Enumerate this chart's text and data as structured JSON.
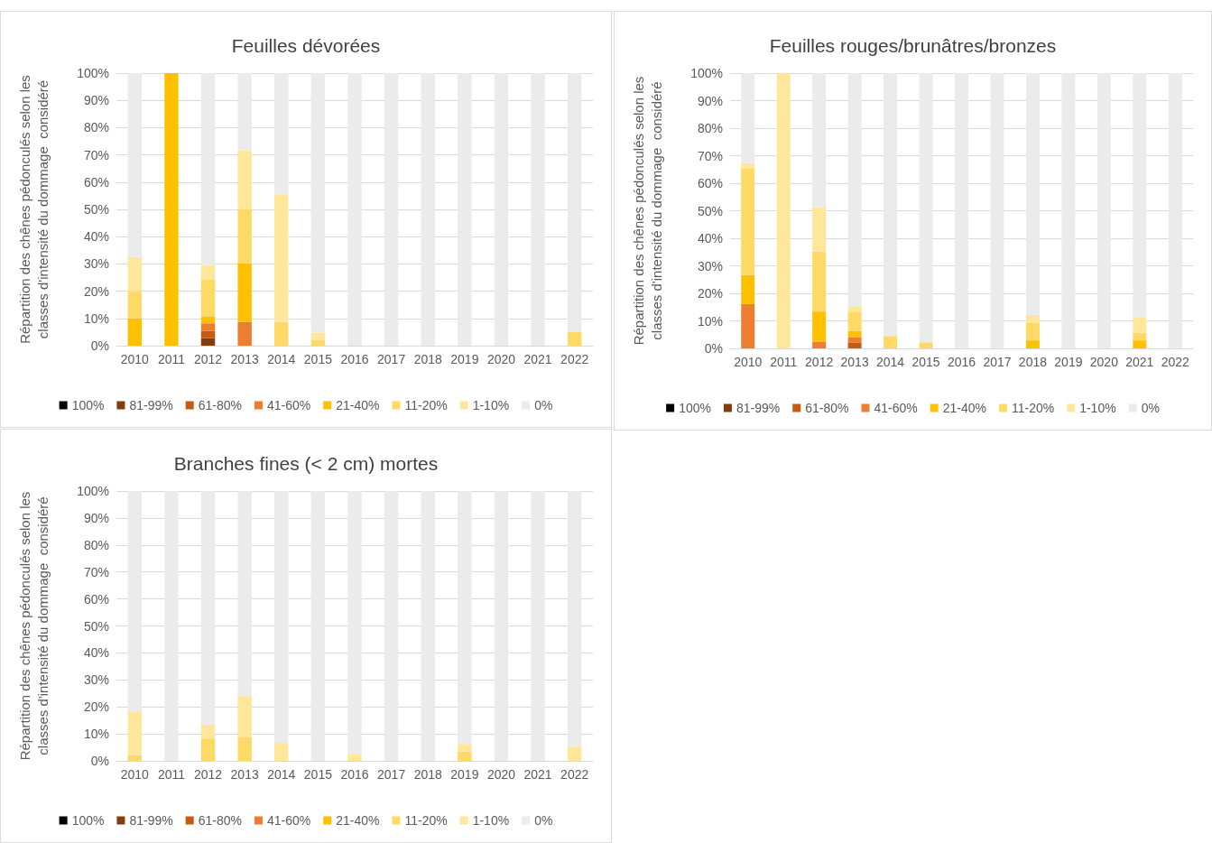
{
  "chart_data": [
    {
      "type": "bar",
      "title": "Feuilles dévorées",
      "ylabel": "Répartition des chênes pédonculés selon les\nclasses d'intensité du dommage  considéré",
      "categories": [
        "2010",
        "2011",
        "2012",
        "2013",
        "2014",
        "2015",
        "2016",
        "2017",
        "2018",
        "2019",
        "2020",
        "2021",
        "2022"
      ],
      "stacked": true,
      "ylim": [
        0,
        100
      ],
      "yticks": [
        {
          "value": 0,
          "label": "0%"
        },
        {
          "value": 10,
          "label": "10%"
        },
        {
          "value": 20,
          "label": "20%"
        },
        {
          "value": 30,
          "label": "30%"
        },
        {
          "value": 40,
          "label": "40%"
        },
        {
          "value": 50,
          "label": "50%"
        },
        {
          "value": 60,
          "label": "60%"
        },
        {
          "value": 70,
          "label": "70%"
        },
        {
          "value": 80,
          "label": "80%"
        },
        {
          "value": 90,
          "label": "90%"
        },
        {
          "value": 100,
          "label": "100%"
        }
      ],
      "grid": "y",
      "legend": "bottom",
      "series": [
        {
          "name": "100%",
          "color": "#000000",
          "values": [
            0,
            0,
            0,
            0,
            0,
            0,
            0,
            0,
            0,
            0,
            0,
            0,
            0
          ]
        },
        {
          "name": "81-99%",
          "color": "#843c0c",
          "values": [
            0,
            0,
            2.8,
            0,
            0,
            0,
            0,
            0,
            0,
            0,
            0,
            0,
            0
          ]
        },
        {
          "name": "61-80%",
          "color": "#c55a11",
          "values": [
            0,
            0,
            2.6,
            0,
            0,
            0,
            0,
            0,
            0,
            0,
            0,
            0,
            0
          ]
        },
        {
          "name": "41-60%",
          "color": "#ed7d31",
          "values": [
            0,
            0,
            2.8,
            8.7,
            0,
            0,
            0,
            0,
            0,
            0,
            0,
            0,
            0
          ]
        },
        {
          "name": "21-40%",
          "color": "#ffc000",
          "values": [
            10,
            100,
            2.4,
            21.6,
            0,
            0,
            0,
            0,
            0,
            0,
            0,
            0,
            0
          ]
        },
        {
          "name": "11-20%",
          "color": "#ffd966",
          "values": [
            10,
            0,
            13.6,
            19.7,
            8.7,
            2.2,
            0,
            0,
            0,
            0,
            0,
            0,
            5
          ]
        },
        {
          "name": "1-10%",
          "color": "#ffe699",
          "values": [
            12.5,
            0,
            5.4,
            21.7,
            46.7,
            2.6,
            0,
            0,
            0,
            0,
            0,
            0,
            0
          ]
        },
        {
          "name": "0%",
          "color": "#ebebeb",
          "values": [
            67.5,
            0,
            70.4,
            28.3,
            44.6,
            95.2,
            100,
            100,
            100,
            100,
            100,
            100,
            95
          ]
        }
      ]
    },
    {
      "type": "bar",
      "title": "Feuilles rouges/brunâtres/bronzes",
      "ylabel": "Répartition des chênes pédonculés selon les\nclasses d'intensité du dommage  considéré",
      "categories": [
        "2010",
        "2011",
        "2012",
        "2013",
        "2014",
        "2015",
        "2016",
        "2017",
        "2018",
        "2019",
        "2020",
        "2021",
        "2022"
      ],
      "stacked": true,
      "ylim": [
        0,
        100
      ],
      "yticks": [
        {
          "value": 0,
          "label": "0%"
        },
        {
          "value": 10,
          "label": "10%"
        },
        {
          "value": 20,
          "label": "20%"
        },
        {
          "value": 30,
          "label": "30%"
        },
        {
          "value": 40,
          "label": "40%"
        },
        {
          "value": 50,
          "label": "50%"
        },
        {
          "value": 60,
          "label": "60%"
        },
        {
          "value": 70,
          "label": "70%"
        },
        {
          "value": 80,
          "label": "80%"
        },
        {
          "value": 90,
          "label": "90%"
        },
        {
          "value": 100,
          "label": "100%"
        }
      ],
      "grid": "y",
      "legend": "bottom",
      "series": [
        {
          "name": "100%",
          "color": "#000000",
          "values": [
            0,
            0,
            0,
            0,
            0,
            0,
            0,
            0,
            0,
            0,
            0,
            0,
            0
          ]
        },
        {
          "name": "81-99%",
          "color": "#843c0c",
          "values": [
            0,
            0,
            0,
            0,
            0,
            0,
            0,
            0,
            0,
            0,
            0,
            0,
            0
          ]
        },
        {
          "name": "61-80%",
          "color": "#c55a11",
          "values": [
            0,
            0,
            0,
            2,
            0,
            0,
            0,
            0,
            0,
            0,
            0,
            0,
            0
          ]
        },
        {
          "name": "41-60%",
          "color": "#ed7d31",
          "values": [
            16.1,
            0,
            2.5,
            2.1,
            0,
            0,
            0,
            0,
            0,
            0,
            0,
            0,
            0
          ]
        },
        {
          "name": "21-40%",
          "color": "#ffc000",
          "values": [
            10.5,
            0,
            10.9,
            2.3,
            0,
            0,
            0,
            0,
            2.9,
            0,
            0,
            2.9,
            0
          ]
        },
        {
          "name": "11-20%",
          "color": "#ffd966",
          "values": [
            38.7,
            0,
            21.8,
            6.7,
            4.5,
            2.2,
            0,
            0,
            6.3,
            0,
            0,
            2.8,
            0
          ]
        },
        {
          "name": "1-10%",
          "color": "#ffe699",
          "values": [
            2,
            100,
            16.1,
            2,
            0,
            0,
            0,
            0,
            3,
            0,
            0,
            5.5,
            0
          ]
        },
        {
          "name": "0%",
          "color": "#ebebeb",
          "values": [
            32.7,
            0,
            48.7,
            84.9,
            95.5,
            97.8,
            100,
            100,
            87.8,
            100,
            100,
            88.8,
            100
          ]
        }
      ]
    },
    {
      "type": "bar",
      "title": "Branches fines (< 2 cm) mortes",
      "ylabel": "Répartition des chênes pédonculés selon les\nclasses d'intensité du dommage  considéré",
      "categories": [
        "2010",
        "2011",
        "2012",
        "2013",
        "2014",
        "2015",
        "2016",
        "2017",
        "2018",
        "2019",
        "2020",
        "2021",
        "2022"
      ],
      "stacked": true,
      "ylim": [
        0,
        100
      ],
      "yticks": [
        {
          "value": 0,
          "label": "0%"
        },
        {
          "value": 10,
          "label": "10%"
        },
        {
          "value": 20,
          "label": "20%"
        },
        {
          "value": 30,
          "label": "30%"
        },
        {
          "value": 40,
          "label": "40%"
        },
        {
          "value": 50,
          "label": "50%"
        },
        {
          "value": 60,
          "label": "60%"
        },
        {
          "value": 70,
          "label": "70%"
        },
        {
          "value": 80,
          "label": "80%"
        },
        {
          "value": 90,
          "label": "90%"
        },
        {
          "value": 100,
          "label": "100%"
        }
      ],
      "grid": "y",
      "legend": "bottom",
      "series": [
        {
          "name": "100%",
          "color": "#000000",
          "values": [
            0,
            0,
            0,
            0,
            0,
            0,
            0,
            0,
            0,
            0,
            0,
            0,
            0
          ]
        },
        {
          "name": "81-99%",
          "color": "#843c0c",
          "values": [
            0,
            0,
            0,
            0,
            0,
            0,
            0,
            0,
            0,
            0,
            0,
            0,
            0
          ]
        },
        {
          "name": "61-80%",
          "color": "#c55a11",
          "values": [
            0,
            0,
            0,
            0,
            0,
            0,
            0,
            0,
            0,
            0,
            0,
            0,
            0
          ]
        },
        {
          "name": "41-60%",
          "color": "#ed7d31",
          "values": [
            0,
            0,
            0,
            0,
            0,
            0,
            0,
            0,
            0,
            0,
            0,
            0,
            0
          ]
        },
        {
          "name": "21-40%",
          "color": "#ffc000",
          "values": [
            0,
            0,
            0,
            0,
            0,
            0,
            0,
            0,
            0,
            0,
            0,
            0,
            0
          ]
        },
        {
          "name": "11-20%",
          "color": "#ffd966",
          "values": [
            2.1,
            0,
            8.3,
            8.9,
            0,
            0,
            0,
            0,
            0,
            3.5,
            0,
            0,
            0
          ]
        },
        {
          "name": "1-10%",
          "color": "#ffe699",
          "values": [
            16.2,
            0,
            5.1,
            15.1,
            6.7,
            0,
            2.3,
            0,
            0,
            2.8,
            0,
            0,
            5.1
          ]
        },
        {
          "name": "0%",
          "color": "#ebebeb",
          "values": [
            81.7,
            100,
            86.6,
            76,
            93.3,
            100,
            97.7,
            100,
            100,
            93.7,
            100,
            100,
            94.9
          ]
        }
      ]
    }
  ]
}
